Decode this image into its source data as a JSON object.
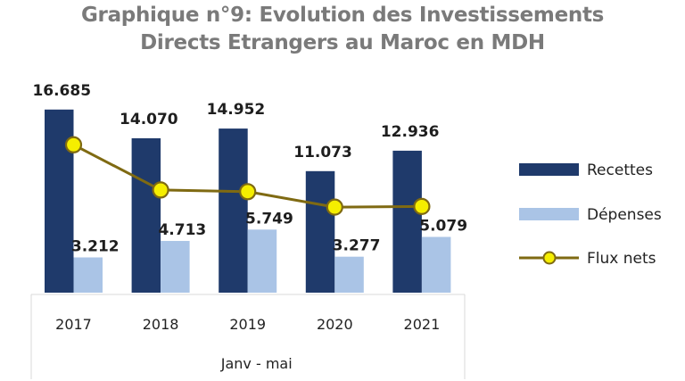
{
  "chart_data": {
    "type": "bar",
    "title": "Graphique n°9: Evolution des Investissements Directs Etrangers au Maroc en MDH",
    "title_lines": [
      "Graphique n°9: Evolution des Investissements",
      "Directs Etrangers au Maroc en MDH"
    ],
    "categories": [
      "2017",
      "2018",
      "2019",
      "2020",
      "2021"
    ],
    "category_group_label": "Janv - mai",
    "xlabel": "Janv - mai",
    "ylabel": "",
    "ylim": [
      0,
      17
    ],
    "grid": false,
    "legend_position": "right",
    "series": [
      {
        "name": "Recettes",
        "kind": "bar",
        "color": "#1f3a6b",
        "values": [
          16.685,
          14.07,
          14.952,
          11.073,
          12.936
        ],
        "labels": [
          "16.685",
          "14.070",
          "14.952",
          "11.073",
          "12.936"
        ]
      },
      {
        "name": "Dépenses",
        "kind": "bar",
        "color": "#aac4e6",
        "values": [
          3.212,
          4.713,
          5.749,
          3.277,
          5.079
        ],
        "labels": [
          "3.212",
          "4.713",
          "5.749",
          "3.277",
          "5.079"
        ]
      },
      {
        "name": "Flux nets",
        "kind": "line",
        "color": "#7f6a12",
        "marker_color": "#f5ee00",
        "values": [
          13.473,
          9.357,
          9.203,
          7.796,
          7.857
        ]
      }
    ]
  }
}
